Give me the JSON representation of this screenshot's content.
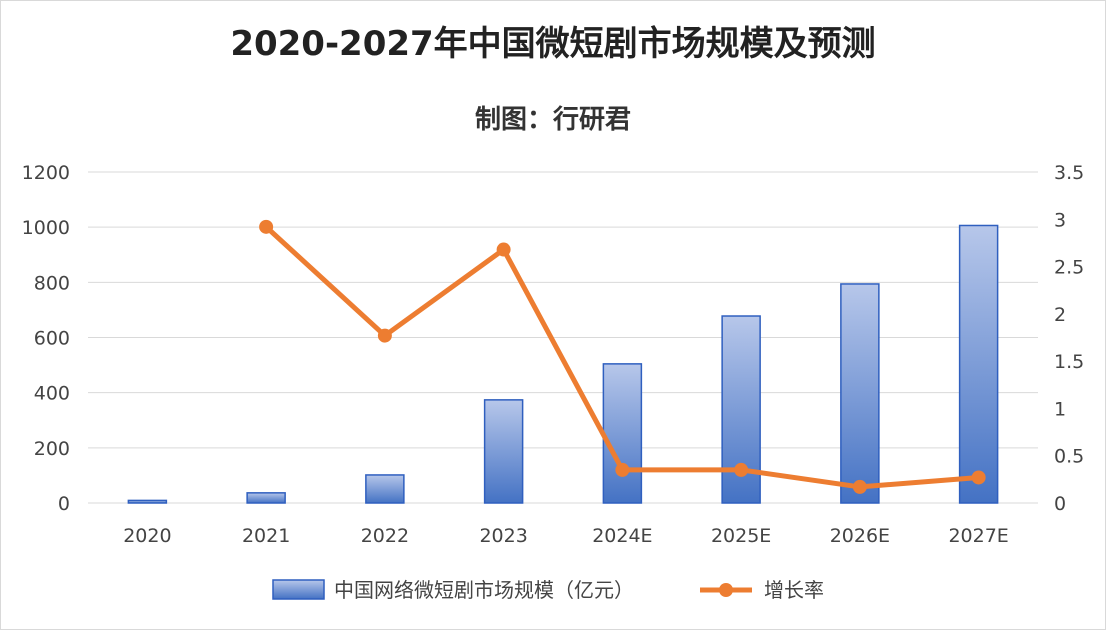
{
  "chart_data": {
    "type": "bar+line",
    "title": "2020-2027年中国微短剧市场规模及预测",
    "subtitle": "制图：行研君",
    "categories": [
      "2020",
      "2021",
      "2022",
      "2023",
      "2024E",
      "2025E",
      "2026E",
      "2027E"
    ],
    "series": [
      {
        "name": "中国网络微短剧市场规模（亿元）",
        "type": "bar",
        "axis": "left",
        "values": [
          9.4,
          36.8,
          101.7,
          373.9,
          504.4,
          677.9,
          794.1,
          1006.1
        ]
      },
      {
        "name": "增长率",
        "type": "line",
        "axis": "right",
        "values": [
          null,
          2.92,
          1.77,
          2.68,
          0.35,
          0.35,
          0.17,
          0.27
        ]
      }
    ],
    "y_left": {
      "min": 0,
      "max": 1200,
      "ticks": [
        "0",
        "200",
        "400",
        "600",
        "800",
        "1000",
        "1200"
      ]
    },
    "y_right": {
      "min": 0,
      "max": 3.5,
      "ticks": [
        "0",
        "0.5",
        "1",
        "1.5",
        "2",
        "2.5",
        "3",
        "3.5"
      ]
    },
    "grid": true,
    "legend": "bottom",
    "colors": {
      "bar_top": "#b7c7ea",
      "bar_bottom": "#4472c4",
      "bar_stroke": "#2f5fbf",
      "line": "#ed7d31",
      "grid": "#d9d9d9"
    }
  }
}
